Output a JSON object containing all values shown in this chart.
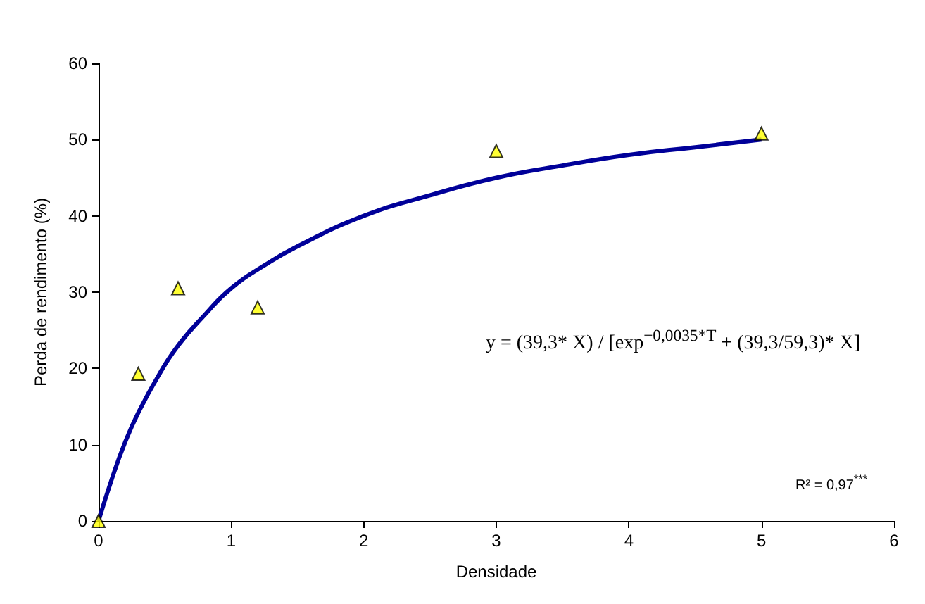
{
  "chart_data": {
    "type": "scatter",
    "xlabel": "Densidade",
    "ylabel": "Perda de rendimento (%)",
    "xlim": [
      0,
      6
    ],
    "xticks": [
      0,
      1,
      2,
      3,
      4,
      5,
      6
    ],
    "ylim": [
      0,
      60
    ],
    "yticks": [
      0,
      10,
      20,
      30,
      40,
      50,
      60
    ],
    "grid": false,
    "marker": "triangle",
    "series": [
      {
        "color": "#ffff00",
        "x": [
          0,
          0.3,
          0.6,
          1.2,
          3,
          5
        ],
        "values": [
          0,
          19.3,
          30.5,
          28,
          48.5,
          50.8
        ]
      },
      {
        "type": "line",
        "color": "#000099",
        "marker": "none",
        "x": [
          0,
          0.1,
          0.2,
          0.3,
          0.45,
          0.6,
          0.8,
          1,
          1.25,
          1.5,
          2,
          2.5,
          3,
          3.5,
          4,
          4.5,
          5
        ],
        "values": [
          0,
          5.5,
          10.3,
          14.2,
          19,
          23,
          27,
          30.5,
          33.5,
          36,
          40,
          42.7,
          45,
          46.6,
          48,
          49,
          50
        ]
      }
    ],
    "annotations": [
      "y = (39,3* X) / [exp$^{−0,0035*T}$ + (39,3/59,3)* X]",
      "R² = 0,97$^{***}$"
    ]
  }
}
